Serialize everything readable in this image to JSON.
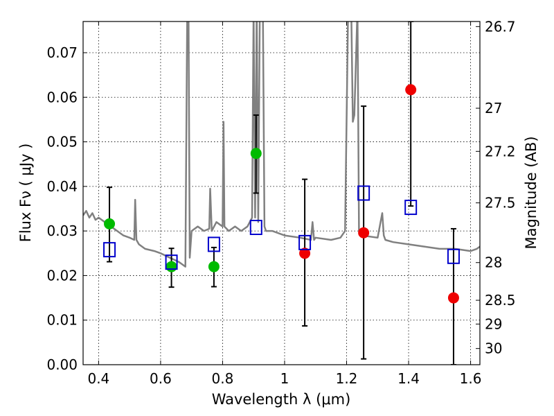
{
  "chart_data": {
    "type": "scatter",
    "xlabel": "Wavelength  λ (μm)",
    "ylabel": "Flux  Fν ( μJy )",
    "ylabel_right": "Magnitude (AB)",
    "xlim": [
      0.35,
      1.63
    ],
    "ylim": [
      0.0,
      0.077
    ],
    "grid": true,
    "x_ticks": [
      {
        "value": 0.4,
        "label": "0.4"
      },
      {
        "value": 0.6,
        "label": "0.6"
      },
      {
        "value": 0.8,
        "label": "0.8"
      },
      {
        "value": 1.0,
        "label": "1"
      },
      {
        "value": 1.2,
        "label": "1.2"
      },
      {
        "value": 1.4,
        "label": "1.4"
      },
      {
        "value": 1.6,
        "label": "1.6"
      }
    ],
    "y_ticks": [
      {
        "value": 0.0,
        "label": "0.00"
      },
      {
        "value": 0.01,
        "label": "0.01"
      },
      {
        "value": 0.02,
        "label": "0.02"
      },
      {
        "value": 0.03,
        "label": "0.03"
      },
      {
        "value": 0.04,
        "label": "0.04"
      },
      {
        "value": 0.05,
        "label": "0.05"
      },
      {
        "value": 0.06,
        "label": "0.06"
      },
      {
        "value": 0.07,
        "label": "0.07"
      }
    ],
    "right_ticks": [
      {
        "mag": 26.7,
        "label": "26.7"
      },
      {
        "mag": 27.0,
        "label": "27"
      },
      {
        "mag": 27.2,
        "label": "27.2"
      },
      {
        "mag": 27.5,
        "label": "27.5"
      },
      {
        "mag": 28.0,
        "label": "28"
      },
      {
        "mag": 28.5,
        "label": "28.5"
      },
      {
        "mag": 29.0,
        "label": "29"
      },
      {
        "mag": 30.0,
        "label": "30"
      }
    ],
    "colors": {
      "spectrum": "#808080",
      "detection": "#00bb00",
      "nondetection": "#ee0000",
      "model": "#0000cc",
      "errorbar": "#000000",
      "grid": "#000000"
    },
    "spectrum": {
      "x": [
        0.35,
        0.36,
        0.37,
        0.38,
        0.39,
        0.4,
        0.42,
        0.44,
        0.46,
        0.48,
        0.5,
        0.515,
        0.518,
        0.522,
        0.53,
        0.55,
        0.58,
        0.6,
        0.63,
        0.66,
        0.68,
        0.686,
        0.69,
        0.694,
        0.7,
        0.72,
        0.74,
        0.757,
        0.76,
        0.765,
        0.78,
        0.8,
        0.803,
        0.806,
        0.82,
        0.84,
        0.86,
        0.88,
        0.895,
        0.9,
        0.905,
        0.91,
        0.915,
        0.92,
        0.925,
        0.93,
        0.935,
        0.94,
        0.96,
        1.0,
        1.05,
        1.085,
        1.09,
        1.095,
        1.1,
        1.15,
        1.18,
        1.195,
        1.205,
        1.21,
        1.215,
        1.22,
        1.225,
        1.235,
        1.24,
        1.25,
        1.3,
        1.315,
        1.32,
        1.325,
        1.35,
        1.4,
        1.45,
        1.5,
        1.55,
        1.6,
        1.62,
        1.63
      ],
      "y": [
        0.0335,
        0.0345,
        0.033,
        0.034,
        0.0325,
        0.033,
        0.032,
        0.031,
        0.03,
        0.029,
        0.0285,
        0.028,
        0.037,
        0.028,
        0.027,
        0.026,
        0.0255,
        0.025,
        0.024,
        0.023,
        0.022,
        0.08,
        0.08,
        0.024,
        0.03,
        0.031,
        0.03,
        0.0305,
        0.0395,
        0.03,
        0.032,
        0.031,
        0.0545,
        0.031,
        0.03,
        0.031,
        0.03,
        0.031,
        0.033,
        0.08,
        0.033,
        0.08,
        0.032,
        0.08,
        0.08,
        0.08,
        0.031,
        0.03,
        0.03,
        0.029,
        0.0285,
        0.028,
        0.032,
        0.028,
        0.0285,
        0.028,
        0.0285,
        0.03,
        0.08,
        0.08,
        0.08,
        0.0545,
        0.056,
        0.08,
        0.03,
        0.029,
        0.0285,
        0.034,
        0.029,
        0.028,
        0.0275,
        0.027,
        0.0265,
        0.026,
        0.026,
        0.0255,
        0.026,
        0.0265
      ]
    },
    "series": [
      {
        "marker": "circle",
        "color": "#00bb00",
        "points": [
          {
            "x": 0.435,
            "y": 0.0316,
            "yerr_lo": 0.0231,
            "yerr_hi": 0.0398
          },
          {
            "x": 0.635,
            "y": 0.022,
            "yerr_lo": 0.0174,
            "yerr_hi": 0.0261
          },
          {
            "x": 0.772,
            "y": 0.022,
            "yerr_lo": 0.0175,
            "yerr_hi": 0.0263
          },
          {
            "x": 0.908,
            "y": 0.0474,
            "yerr_lo": 0.0385,
            "yerr_hi": 0.056
          }
        ]
      },
      {
        "marker": "circle",
        "color": "#ee0000",
        "points": [
          {
            "x": 1.065,
            "y": 0.025,
            "yerr_lo": 0.0087,
            "yerr_hi": 0.0416
          },
          {
            "x": 1.255,
            "y": 0.0296,
            "yerr_lo": 0.0013,
            "yerr_hi": 0.058
          },
          {
            "x": 1.407,
            "y": 0.0617,
            "yerr_lo": 0.0356,
            "yerr_hi": 0.077
          },
          {
            "x": 1.545,
            "y": 0.015,
            "yerr_lo": 0.0,
            "yerr_hi": 0.0305
          }
        ]
      },
      {
        "marker": "square",
        "color": "#0000cc",
        "points": [
          {
            "x": 0.435,
            "y": 0.0258
          },
          {
            "x": 0.635,
            "y": 0.023
          },
          {
            "x": 0.772,
            "y": 0.027
          },
          {
            "x": 0.908,
            "y": 0.0308
          },
          {
            "x": 1.065,
            "y": 0.0274
          },
          {
            "x": 1.255,
            "y": 0.0385
          },
          {
            "x": 1.407,
            "y": 0.0353
          },
          {
            "x": 1.545,
            "y": 0.0243
          }
        ]
      }
    ]
  }
}
